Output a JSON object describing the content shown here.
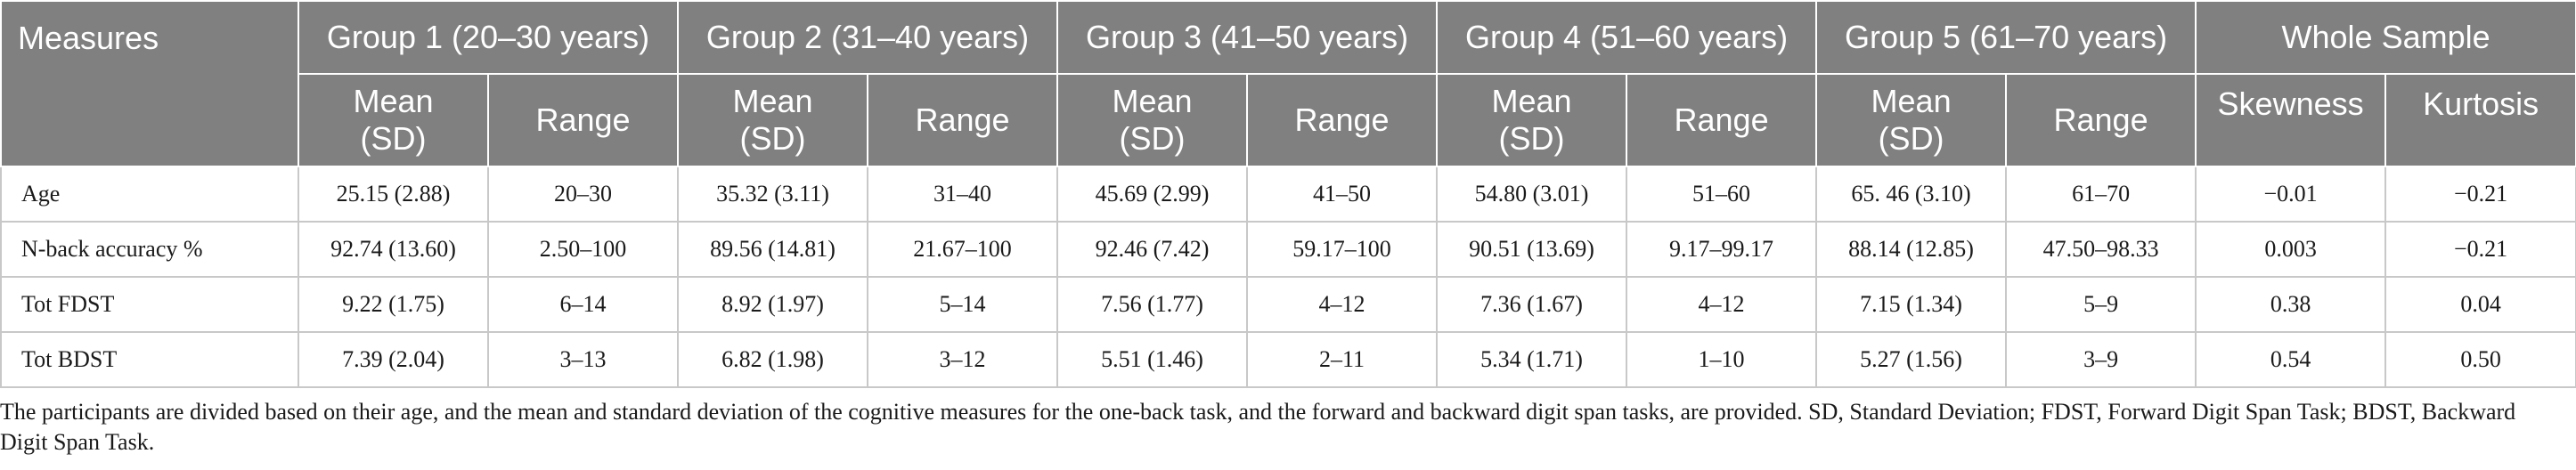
{
  "table": {
    "header_measures": "Measures",
    "groups": [
      "Group 1 (20–30 years)",
      "Group 2 (31–40 years)",
      "Group 3 (41–50 years)",
      "Group 4 (51–60 years)",
      "Group 5 (61–70 years)"
    ],
    "whole_sample": "Whole Sample",
    "sub_mean_line1": "Mean",
    "sub_mean_line2": "(SD)",
    "sub_range": "Range",
    "sub_skewness": "Skewness",
    "sub_kurtosis": "Kurtosis",
    "rows": [
      {
        "label": "Age",
        "cells": [
          "25.15 (2.88)",
          "20–30",
          "35.32 (3.11)",
          "31–40",
          "45.69 (2.99)",
          "41–50",
          "54.80 (3.01)",
          "51–60",
          "65. 46 (3.10)",
          "61–70",
          "−0.01",
          "−0.21"
        ]
      },
      {
        "label": "N-back accuracy %",
        "cells": [
          "92.74 (13.60)",
          "2.50–100",
          "89.56 (14.81)",
          "21.67–100",
          "92.46 (7.42)",
          "59.17–100",
          "90.51 (13.69)",
          "9.17–99.17",
          "88.14 (12.85)",
          "47.50–98.33",
          "0.003",
          "−0.21"
        ]
      },
      {
        "label": "Tot FDST",
        "cells": [
          "9.22 (1.75)",
          "6–14",
          "8.92 (1.97)",
          "5–14",
          "7.56 (1.77)",
          "4–12",
          "7.36 (1.67)",
          "4–12",
          "7.15 (1.34)",
          "5–9",
          "0.38",
          "0.04"
        ]
      },
      {
        "label": "Tot BDST",
        "cells": [
          "7.39 (2.04)",
          "3–13",
          "6.82 (1.98)",
          "3–12",
          "5.51 (1.46)",
          "2–11",
          "5.34 (1.71)",
          "1–10",
          "5.27 (1.56)",
          "3–9",
          "0.54",
          "0.50"
        ]
      }
    ]
  },
  "footnote": "The participants are divided based on their age, and the mean and standard deviation of the cognitive measures for the one-back task, and the forward and backward digit span tasks, are provided. SD, Standard Deviation; FDST, Forward Digit Span Task; BDST, Backward Digit Span Task."
}
